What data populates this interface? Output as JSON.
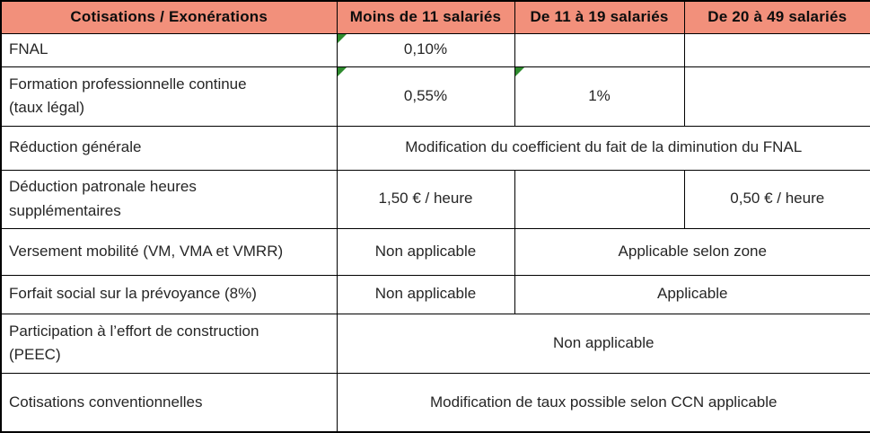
{
  "colors": {
    "header_bg": "#f2907b",
    "border": "#000000",
    "flag": "#2e8b2e",
    "text": "#262626",
    "header_text": "#0d0d0d"
  },
  "table": {
    "header": [
      {
        "label": "Cotisations / Exonérations"
      },
      {
        "label": "Moins de 11 salariés"
      },
      {
        "label": "De 11 à 19 salariés"
      },
      {
        "label": "De 20 à 49 salariés"
      }
    ],
    "rows": [
      {
        "label": "FNAL",
        "cells": [
          {
            "text": "0,10%",
            "flag": true
          },
          {
            "text": "",
            "flag": false
          },
          {
            "text": "",
            "flag": false
          }
        ]
      },
      {
        "label": "Formation professionnelle continue\n(taux légal)",
        "cells": [
          {
            "text": "0,55%",
            "flag": true
          },
          {
            "text": "1%",
            "flag": true
          },
          {
            "text": "",
            "flag": false
          }
        ]
      },
      {
        "label": "Réduction générale",
        "cells": [
          {
            "text": "Modification du coefficient du fait de la diminution du FNAL",
            "flag": false
          }
        ]
      },
      {
        "label": "Déduction patronale heures\nsupplémentaires",
        "cells": [
          {
            "text": "1,50 € / heure",
            "flag": false
          },
          {
            "text": "",
            "flag": false
          },
          {
            "text": "0,50 € / heure",
            "flag": false
          }
        ]
      },
      {
        "label": "Versement mobilité (VM, VMA et VMRR)",
        "cells": [
          {
            "text": "Non applicable",
            "flag": false
          },
          {
            "text": "Applicable selon zone",
            "flag": false
          }
        ]
      },
      {
        "label": "Forfait social sur la prévoyance (8%)",
        "cells": [
          {
            "text": "Non applicable",
            "flag": false
          },
          {
            "text": "Applicable",
            "flag": false
          }
        ]
      },
      {
        "label": "Participation à l’effort de construction\n(PEEC)",
        "cells": [
          {
            "text": "Non applicable",
            "flag": false
          }
        ]
      },
      {
        "label": "Cotisations conventionnelles",
        "cells": [
          {
            "text": "Modification de taux possible selon CCN applicable",
            "flag": false
          }
        ]
      }
    ]
  }
}
